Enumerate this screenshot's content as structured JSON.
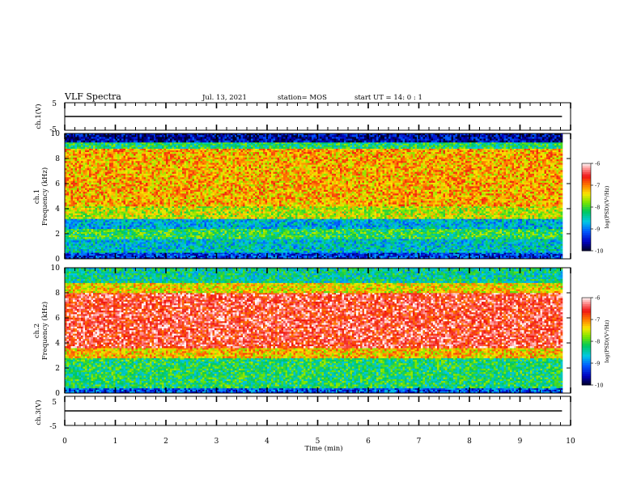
{
  "header": {
    "title": "VLF Spectra",
    "date": "Jul. 13, 2021",
    "station": "station= MOS",
    "start": "start UT = 14: 0 : 1"
  },
  "chart_data": [
    {
      "type": "line",
      "name": "ch1-waveform",
      "ylabel": "ch.1(V)",
      "ylim": [
        -5,
        5
      ],
      "yticks": [
        "5",
        "-5"
      ],
      "x": [
        0,
        9.83
      ],
      "series": [
        {
          "values": [
            0,
            0
          ]
        }
      ]
    },
    {
      "type": "heatmap",
      "name": "ch1-spectrogram",
      "ylabel_line1": "ch.1",
      "ylabel_line2": "Frequency (kHz)",
      "ylim": [
        0,
        10
      ],
      "yticks": [
        "0",
        "2",
        "4",
        "6",
        "8",
        "10"
      ],
      "xlim": [
        0,
        9.83
      ],
      "bands": [
        {
          "f0": 0.0,
          "f1": 0.5,
          "level": -9.3
        },
        {
          "f0": 0.5,
          "f1": 1.6,
          "level": -8.6
        },
        {
          "f0": 1.6,
          "f1": 2.4,
          "level": -8.1
        },
        {
          "f0": 2.4,
          "f1": 3.2,
          "level": -8.7
        },
        {
          "f0": 3.2,
          "f1": 4.2,
          "level": -7.6
        },
        {
          "f0": 4.2,
          "f1": 8.8,
          "level": -7.2
        },
        {
          "f0": 8.8,
          "f1": 9.3,
          "level": -8.2
        },
        {
          "f0": 9.3,
          "f1": 10.0,
          "level": -9.6
        }
      ],
      "colorbar": {
        "label": "log(PSD)(V²/Hz)",
        "range": [
          -10,
          -6
        ],
        "ticks": [
          "-6",
          "-7",
          "-8",
          "-9",
          "-10"
        ]
      }
    },
    {
      "type": "heatmap",
      "name": "ch2-spectrogram",
      "ylabel_line1": "ch.2",
      "ylabel_line2": "Frequency (kHz)",
      "ylim": [
        0,
        10
      ],
      "yticks": [
        "0",
        "2",
        "4",
        "6",
        "8",
        "10"
      ],
      "xlim": [
        0,
        9.83
      ],
      "bands": [
        {
          "f0": 0.0,
          "f1": 0.4,
          "level": -9.2
        },
        {
          "f0": 0.4,
          "f1": 2.8,
          "level": -8.2
        },
        {
          "f0": 2.8,
          "f1": 3.6,
          "level": -7.3
        },
        {
          "f0": 3.6,
          "f1": 8.0,
          "level": -6.5
        },
        {
          "f0": 8.0,
          "f1": 8.8,
          "level": -7.4
        },
        {
          "f0": 8.8,
          "f1": 10.0,
          "level": -8.4
        }
      ],
      "colorbar": {
        "label": "log(PSD)(V²/Hz)",
        "range": [
          -10,
          -6
        ],
        "ticks": [
          "-6",
          "-7",
          "-8",
          "-9",
          "-10"
        ]
      }
    },
    {
      "type": "line",
      "name": "ch3-waveform",
      "ylabel": "ch.3(V)",
      "ylim": [
        -5,
        5
      ],
      "yticks": [
        "5",
        "-5"
      ],
      "x": [
        0,
        9.83
      ],
      "series": [
        {
          "values": [
            0,
            0
          ]
        }
      ]
    }
  ],
  "x_axis": {
    "label": "Time (min)",
    "range": [
      0,
      10
    ],
    "ticks": [
      "0",
      "1",
      "2",
      "3",
      "4",
      "5",
      "6",
      "7",
      "8",
      "9",
      "10"
    ]
  }
}
